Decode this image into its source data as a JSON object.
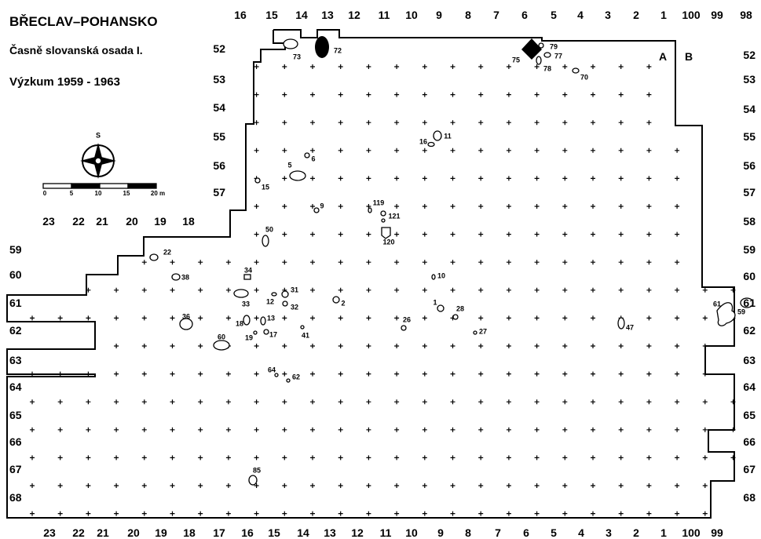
{
  "map": {
    "title": "BŘECLAV–POHANSKO",
    "subtitle": "Časně slovanská osada I.",
    "survey": "Výzkum 1959 - 1963",
    "compass_label": "S",
    "scale_labels": [
      "0",
      "5",
      "10",
      "15",
      "20 m"
    ],
    "top_grid_labels": [
      "16",
      "15",
      "14",
      "13",
      "12",
      "11",
      "10",
      "9",
      "8",
      "7",
      "6",
      "5",
      "4",
      "3",
      "2",
      "1",
      "100",
      "99",
      "98"
    ],
    "bottom_grid_labels": [
      "23",
      "22",
      "21",
      "20",
      "19",
      "18",
      "17",
      "16",
      "15",
      "14",
      "13",
      "12",
      "11",
      "10",
      "9",
      "8",
      "7",
      "6",
      "5",
      "4",
      "3",
      "2",
      "1",
      "100",
      "99"
    ],
    "left_mid_labels": [
      "23",
      "22",
      "21",
      "20",
      "19",
      "18"
    ],
    "section_labels": [
      "A",
      "B"
    ],
    "left_row_labels": [
      "59",
      "60",
      "61",
      "62",
      "63",
      "64",
      "65",
      "66",
      "67",
      "68"
    ],
    "inner_row_labels": [
      "52",
      "53",
      "54",
      "55",
      "56",
      "57"
    ],
    "right_row_labels": [
      "52",
      "53",
      "54",
      "55",
      "56",
      "57",
      "58",
      "59",
      "60",
      "61",
      "62",
      "63",
      "64",
      "65",
      "66",
      "67",
      "68"
    ],
    "features": [
      "73",
      "72",
      "79",
      "77",
      "75",
      "78",
      "70",
      "16",
      "11",
      "6",
      "5",
      "15",
      "119",
      "121",
      "9",
      "120",
      "50",
      "22",
      "34",
      "38",
      "31",
      "12",
      "33",
      "32",
      "2",
      "10",
      "1",
      "28",
      "36",
      "13",
      "18",
      "26",
      "41",
      "27",
      "19",
      "17",
      "47",
      "60",
      "61",
      "59",
      "64",
      "62",
      "85"
    ]
  }
}
